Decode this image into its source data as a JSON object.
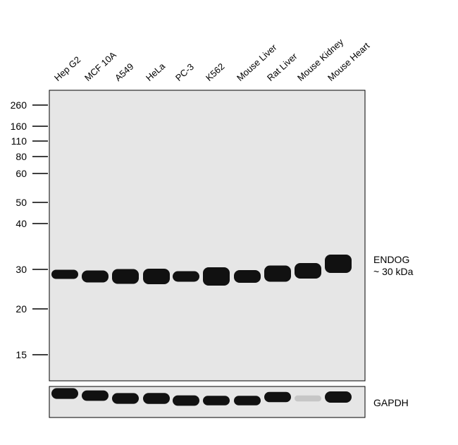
{
  "lanes": [
    "Hep G2",
    "MCF 10A",
    "A549",
    "HeLa",
    "PC-3",
    "K562",
    "Mouse Liver",
    "Rat Liver",
    "Mouse Kidney",
    "Mouse Heart"
  ],
  "markers": [
    "260",
    "160",
    "110",
    "80",
    "60",
    "50",
    "40",
    "30",
    "20",
    "15"
  ],
  "target": {
    "name": "ENDOG",
    "size": "~ 30 kDa"
  },
  "loading_control": "GAPDH",
  "band_intensity": {
    "ENDOG": [
      0.35,
      0.55,
      0.75,
      0.8,
      0.45,
      1.0,
      0.6,
      0.85,
      0.8,
      1.0
    ],
    "GAPDH": [
      0.9,
      0.85,
      0.9,
      0.95,
      0.85,
      0.7,
      0.7,
      0.8,
      0.05,
      1.0
    ]
  },
  "colors": {
    "membrane": "#e6e6e6",
    "band": "#111111"
  }
}
